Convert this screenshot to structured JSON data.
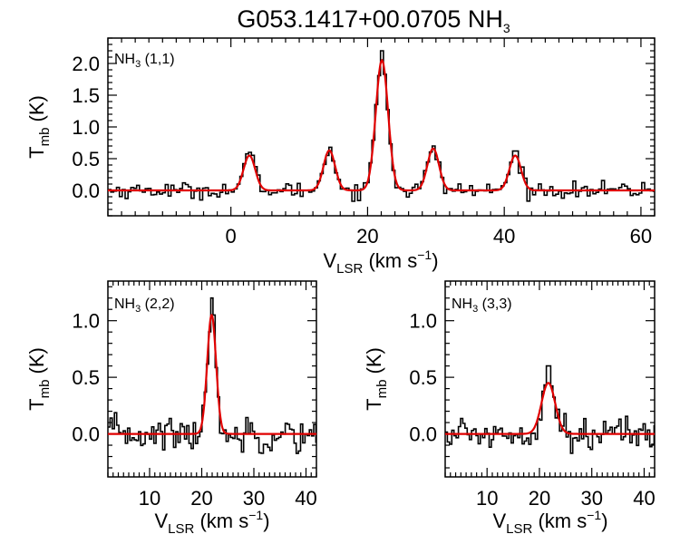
{
  "chart_data": [
    {
      "type": "line",
      "title_main": "G053.1417+00.0705 NH",
      "title_sub": "3",
      "panel_label_main": "NH",
      "panel_label_sub": "3",
      "panel_label_tail": " (1,1)",
      "xlabel_main": "V",
      "xlabel_sub": "LSR",
      "xlabel_tail": " (km s",
      "xlabel_sup": "−1",
      "xlabel_close": ")",
      "ylabel_main": "T",
      "ylabel_sub": "mb",
      "ylabel_tail": " (K)",
      "xlim": [
        -18,
        62
      ],
      "ylim": [
        -0.4,
        2.4
      ],
      "xticks": [
        0,
        20,
        40,
        60
      ],
      "yticks": [
        0.0,
        0.5,
        1.0,
        1.5,
        2.0
      ],
      "xtick_labels": [
        "0",
        "20",
        "40",
        "60"
      ],
      "ytick_labels": [
        "0.0",
        "0.5",
        "1.0",
        "1.5",
        "2.0"
      ],
      "fit_components": [
        {
          "center": 2.7,
          "amplitude": 0.55,
          "sigma": 0.85
        },
        {
          "center": 14.4,
          "amplitude": 0.63,
          "sigma": 0.85
        },
        {
          "center": 22.1,
          "amplitude": 2.05,
          "sigma": 0.9
        },
        {
          "center": 29.6,
          "amplitude": 0.66,
          "sigma": 0.85
        },
        {
          "center": 41.6,
          "amplitude": 0.55,
          "sigma": 0.85
        }
      ],
      "series": [
        {
          "color": "#000000",
          "step": true,
          "peak_values": [
            0.6,
            0.68,
            2.2,
            0.7,
            0.62
          ],
          "noise_rms": 0.06
        },
        {
          "color": "#e00000",
          "step": false
        }
      ]
    },
    {
      "type": "line",
      "panel_label_main": "NH",
      "panel_label_sub": "3",
      "panel_label_tail": " (2,2)",
      "xlabel_main": "V",
      "xlabel_sub": "LSR",
      "xlabel_tail": " (km s",
      "xlabel_sup": "−1",
      "xlabel_close": ")",
      "ylabel_main": "T",
      "ylabel_sub": "mb",
      "ylabel_tail": " (K)",
      "xlim": [
        2,
        42
      ],
      "ylim": [
        -0.38,
        1.35
      ],
      "xticks": [
        10,
        20,
        30,
        40
      ],
      "yticks": [
        0.0,
        0.5,
        1.0
      ],
      "xtick_labels": [
        "10",
        "20",
        "30",
        "40"
      ],
      "ytick_labels": [
        "0.0",
        "0.5",
        "1.0"
      ],
      "fit_components": [
        {
          "center": 21.9,
          "amplitude": 1.05,
          "sigma": 0.85
        }
      ],
      "series": [
        {
          "color": "#000000",
          "step": true,
          "peak_values": [
            1.2
          ],
          "noise_rms": 0.08
        },
        {
          "color": "#e00000",
          "step": false
        }
      ]
    },
    {
      "type": "line",
      "panel_label_main": "NH",
      "panel_label_sub": "3",
      "panel_label_tail": " (3,3)",
      "xlabel_main": "V",
      "xlabel_sub": "LSR",
      "xlabel_tail": " (km s",
      "xlabel_sup": "−1",
      "xlabel_close": ")",
      "ylabel_main": "T",
      "ylabel_sub": "mb",
      "ylabel_tail": " (K)",
      "xlim": [
        2,
        42
      ],
      "ylim": [
        -0.38,
        1.35
      ],
      "xticks": [
        10,
        20,
        30,
        40
      ],
      "yticks": [
        0.0,
        0.5,
        1.0
      ],
      "xtick_labels": [
        "10",
        "20",
        "30",
        "40"
      ],
      "ytick_labels": [
        "0.0",
        "0.5",
        "1.0"
      ],
      "fit_components": [
        {
          "center": 21.7,
          "amplitude": 0.45,
          "sigma": 1.3
        }
      ],
      "series": [
        {
          "color": "#000000",
          "step": true,
          "peak_values": [
            0.6
          ],
          "noise_rms": 0.07
        },
        {
          "color": "#e00000",
          "step": false
        }
      ]
    }
  ]
}
